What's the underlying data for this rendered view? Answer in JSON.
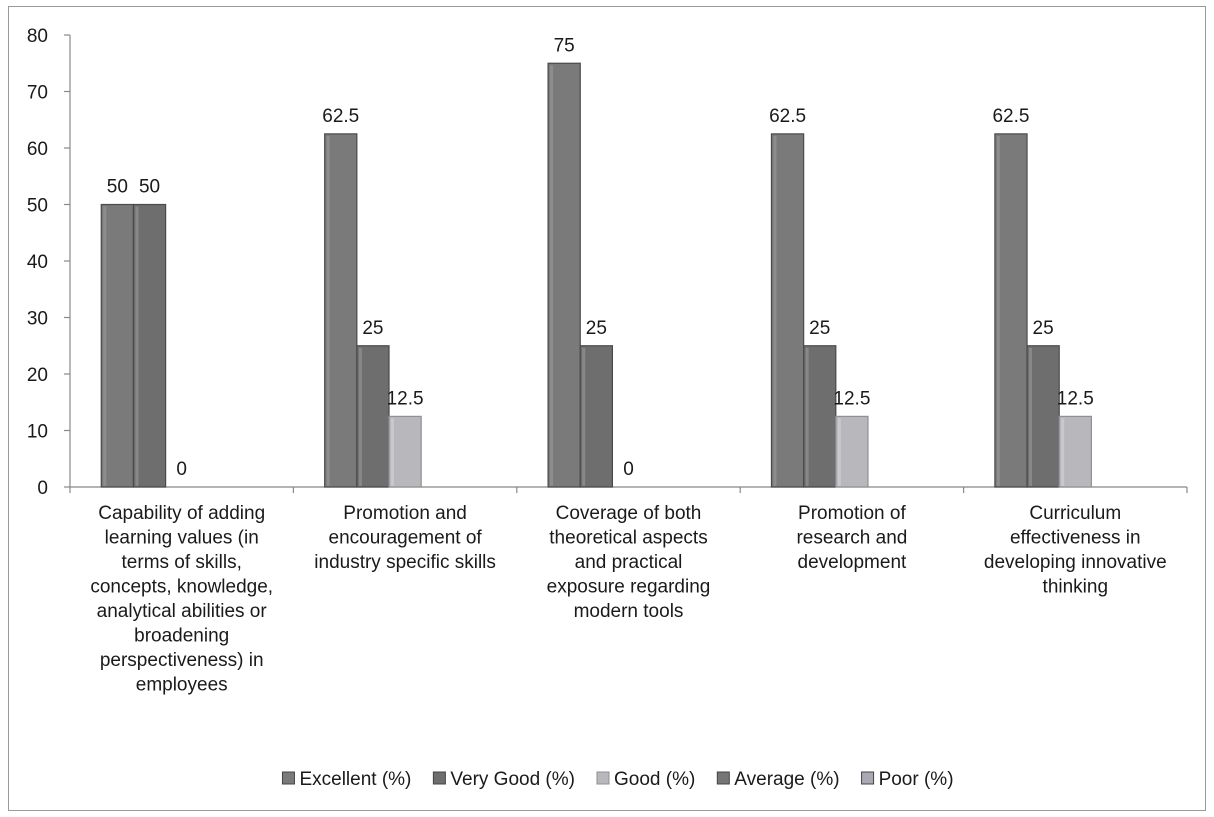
{
  "chart_data": {
    "type": "bar",
    "title": "",
    "xlabel": "",
    "ylabel": "",
    "ylim": [
      0,
      80
    ],
    "yticks": [
      0,
      10,
      20,
      30,
      40,
      50,
      60,
      70,
      80
    ],
    "grid": false,
    "legend_position": "bottom",
    "categories": [
      "Capability of adding learning values (in terms of skills, concepts, knowledge, analytical abilities or broadening perspectiveness) in employees",
      "Promotion and encouragement of industry specific skills",
      "Coverage of both theoretical aspects and practical exposure regarding modern tools",
      "Promotion of research and development",
      "Curriculum effectiveness in developing innovative thinking"
    ],
    "category_label_lines": [
      [
        "Capability of adding",
        "learning values (in",
        "terms of skills,",
        "concepts, knowledge,",
        "analytical abilities or",
        "broadening",
        "perspectiveness) in",
        "employees"
      ],
      [
        "Promotion and",
        "encouragement of",
        "industry specific skills"
      ],
      [
        "Coverage of both",
        "theoretical aspects",
        "and practical",
        "exposure regarding",
        "modern tools"
      ],
      [
        "Promotion of",
        "research and",
        "development"
      ],
      [
        "Curriculum",
        "effectiveness in",
        "developing innovative",
        "thinking"
      ]
    ],
    "series": [
      {
        "name": "Excellent (%)",
        "values": [
          50,
          62.5,
          75,
          62.5,
          62.5
        ],
        "labels": [
          "50",
          "62.5",
          "75",
          "62.5",
          "62.5"
        ],
        "color": "#7a7a7a"
      },
      {
        "name": "Very Good (%)",
        "values": [
          50,
          25,
          25,
          25,
          25
        ],
        "labels": [
          "50",
          "25",
          "25",
          "25",
          "25"
        ],
        "color": "#6e6e6e"
      },
      {
        "name": "Good (%)",
        "values": [
          0,
          12.5,
          0,
          12.5,
          12.5
        ],
        "labels": [
          "0",
          "12.5",
          "0",
          "12.5",
          "12.5"
        ],
        "color": "#b8b8bc"
      },
      {
        "name": "Average (%)",
        "values": [
          null,
          null,
          null,
          null,
          null
        ],
        "labels": [
          "",
          "",
          "",
          "",
          ""
        ],
        "color": "#767676"
      },
      {
        "name": "Poor (%)",
        "values": [
          null,
          null,
          null,
          null,
          null
        ],
        "labels": [
          "",
          "",
          "",
          "",
          ""
        ],
        "color": "#a9a9b4"
      }
    ]
  }
}
